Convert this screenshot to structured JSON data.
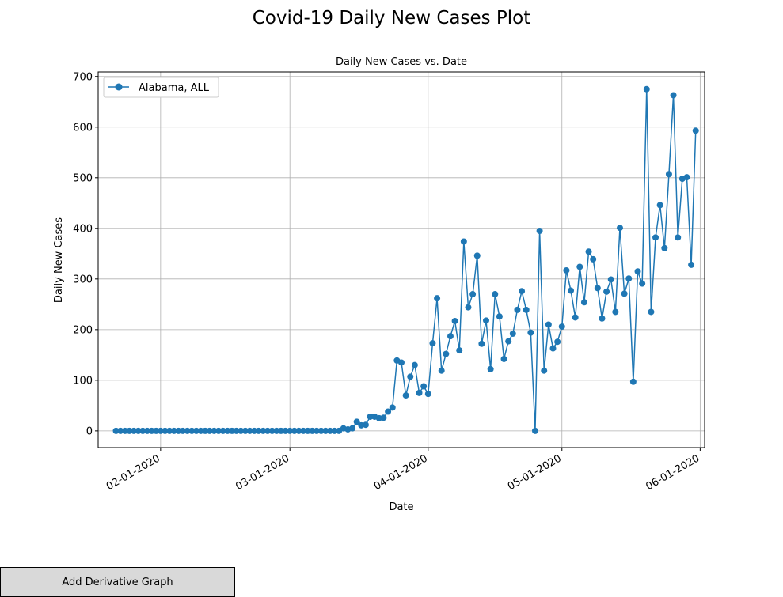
{
  "figure": {
    "title": "Covid-19 Daily New Cases Plot"
  },
  "button": {
    "label": "Add Derivative Graph"
  },
  "chart_data": {
    "type": "line",
    "title": "Daily New Cases vs. Date",
    "xlabel": "Date",
    "ylabel": "Daily New Cases",
    "x_ticks": [
      "02-01-2020",
      "03-01-2020",
      "04-01-2020",
      "05-01-2020",
      "06-01-2020"
    ],
    "y_ticks": [
      0,
      100,
      200,
      300,
      400,
      500,
      600,
      700
    ],
    "xlim": [
      "2020-01-18",
      "2020-06-02"
    ],
    "ylim": [
      -33,
      709
    ],
    "grid": true,
    "legend": "top-left",
    "color": "#1f77b4",
    "marker": "circle",
    "series": [
      {
        "name": "Alabama, ALL",
        "start_date": "2020-01-22",
        "values": [
          0,
          0,
          0,
          0,
          0,
          0,
          0,
          0,
          0,
          0,
          0,
          0,
          0,
          0,
          0,
          0,
          0,
          0,
          0,
          0,
          0,
          0,
          0,
          0,
          0,
          0,
          0,
          0,
          0,
          0,
          0,
          0,
          0,
          0,
          0,
          0,
          0,
          0,
          0,
          0,
          0,
          0,
          0,
          0,
          0,
          0,
          0,
          0,
          0,
          0,
          0,
          5,
          3,
          5,
          18,
          11,
          12,
          28,
          28,
          25,
          26,
          38,
          46,
          139,
          135,
          70,
          107,
          130,
          75,
          88,
          73,
          173,
          262,
          119,
          152,
          187,
          217,
          159,
          374,
          244,
          270,
          346,
          172,
          218,
          122,
          270,
          226,
          142,
          177,
          192,
          239,
          276,
          239,
          194,
          0,
          395,
          119,
          210,
          163,
          176,
          206,
          317,
          277,
          224,
          324,
          254,
          354,
          339,
          282,
          222,
          275,
          299,
          235,
          401,
          271,
          301,
          97,
          315,
          291,
          675,
          235,
          382,
          446,
          361,
          507,
          663,
          382,
          498,
          501,
          328,
          593
        ]
      }
    ]
  }
}
